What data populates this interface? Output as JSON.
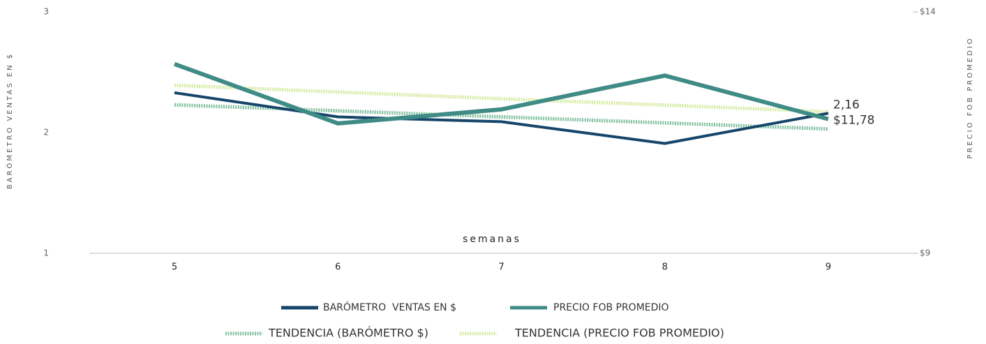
{
  "chart_data": {
    "type": "line",
    "categories": [
      "5",
      "6",
      "7",
      "8",
      "9"
    ],
    "x_label": "semanas",
    "y_label": "BARÓMETRO VENTAS EN $",
    "y2_label": "PRECIO FOB PROMEDIO",
    "ylim": [
      1,
      3
    ],
    "yticks": [
      1,
      2,
      3
    ],
    "y2lim": [
      9,
      14
    ],
    "y2ticks": [
      {
        "value": 9,
        "label": "$9"
      },
      {
        "value": 14,
        "label": "$14"
      }
    ],
    "grid": false,
    "series": [
      {
        "name": "BARÓMETRO  VENTAS EN $",
        "color": "#16456a",
        "style": "solid",
        "values": [
          2.33,
          2.13,
          2.09,
          1.91,
          2.16
        ],
        "value_labels": [
          null,
          null,
          null,
          null,
          "2,16"
        ]
      },
      {
        "name": "PRECIO FOB PROMEDIO",
        "color": "#3f8b85",
        "style": "solid",
        "axis": "y2",
        "values": [
          12.92,
          11.69,
          11.98,
          12.68,
          11.78
        ],
        "value_labels": [
          null,
          null,
          null,
          null,
          "$11,78"
        ]
      },
      {
        "name": "TENDENCIA (BARÓMETRO $)",
        "color": "#7fbf9f",
        "style": "dotted",
        "values": [
          2.23,
          2.18,
          2.13,
          2.08,
          2.03
        ]
      },
      {
        "name": "TENDENCIA (PRECIO FOB PROMEDIO)",
        "color": "#d6eaa0",
        "style": "dotted",
        "axis": "y2",
        "values": [
          12.48,
          12.34,
          12.2,
          12.07,
          11.93
        ]
      }
    ]
  }
}
